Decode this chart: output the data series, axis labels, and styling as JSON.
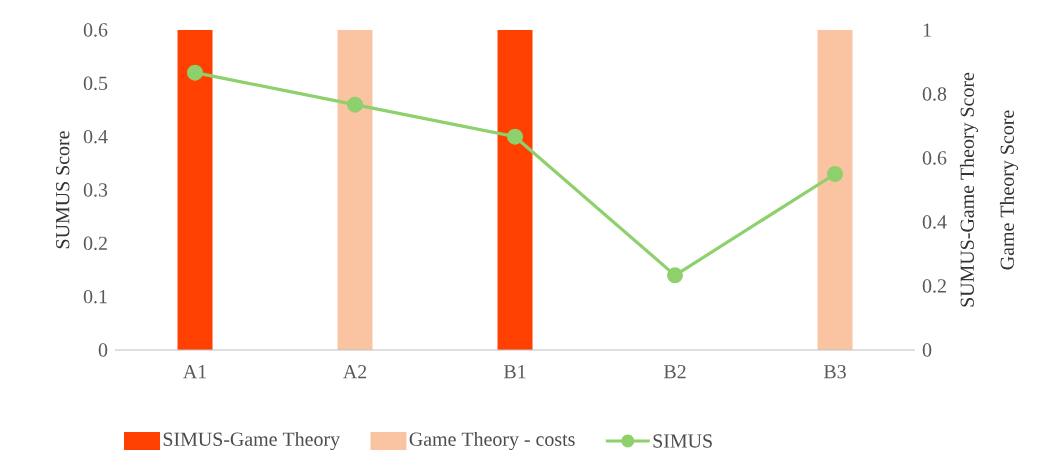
{
  "chart_data": {
    "type": "bar",
    "categories": [
      "A1",
      "A2",
      "B1",
      "B2",
      "B3"
    ],
    "ylabel": "SUMUS Score",
    "y2label": "SUMUS-Game Theory Score",
    "annotations": [
      "Game Theory Score"
    ],
    "ylim": [
      0,
      0.6
    ],
    "yticks": [
      0,
      0.1,
      0.2,
      0.3,
      0.4,
      0.5,
      0.6
    ],
    "y2lim": [
      0,
      1
    ],
    "y2ticks": [
      0,
      0.2,
      0.4,
      0.6,
      0.8,
      1
    ],
    "series": [
      {
        "name": "SIMUS-Game Theory",
        "axis": "y2",
        "color": "#ff4000",
        "values": [
          1,
          null,
          1,
          null,
          null
        ]
      },
      {
        "name": "Game Theory - costs",
        "axis": "y2",
        "color": "#fac3a2",
        "values": [
          null,
          1,
          null,
          null,
          1
        ]
      },
      {
        "name": "SIMUS",
        "type": "line",
        "color": "#8ed16c",
        "marker": "circle",
        "line_style": "solid",
        "values": [
          0.52,
          0.46,
          0.4,
          0.14,
          0.33
        ]
      }
    ],
    "legend": "bottom",
    "grid": false
  }
}
